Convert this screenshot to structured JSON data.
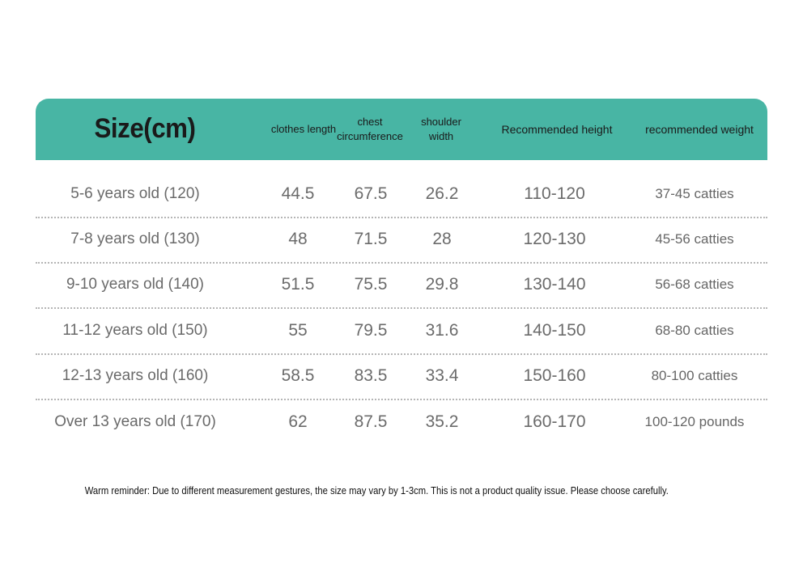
{
  "table": {
    "header": {
      "size": "Size(cm)",
      "length": "clothes length",
      "chest_line1": "chest",
      "chest_line2": "circumference",
      "shoulder_line1": "shoulder",
      "shoulder_line2": "width",
      "height": "Recommended height",
      "weight": "recommended weight"
    },
    "rows": [
      {
        "size": "5-6 years old (120)",
        "length": "44.5",
        "chest": "67.5",
        "shoulder": "26.2",
        "height": "110-120",
        "weight": "37-45 catties"
      },
      {
        "size": "7-8 years old (130)",
        "length": "48",
        "chest": "71.5",
        "shoulder": "28",
        "height": "120-130",
        "weight": "45-56 catties"
      },
      {
        "size": "9-10 years old (140)",
        "length": "51.5",
        "chest": "75.5",
        "shoulder": "29.8",
        "height": "130-140",
        "weight": "56-68 catties"
      },
      {
        "size": "11-12 years old (150)",
        "length": "55",
        "chest": "79.5",
        "shoulder": "31.6",
        "height": "140-150",
        "weight": "68-80 catties"
      },
      {
        "size": "12-13 years old (160)",
        "length": "58.5",
        "chest": "83.5",
        "shoulder": "33.4",
        "height": "150-160",
        "weight": "80-100 catties"
      },
      {
        "size": "Over 13 years old (170)",
        "length": "62",
        "chest": "87.5",
        "shoulder": "35.2",
        "height": "160-170",
        "weight": "100-120 pounds"
      }
    ]
  },
  "footer": {
    "note": "Warm reminder: Due to different measurement gestures, the size may vary by 1-3cm. This is not a product quality issue. Please choose carefully."
  },
  "colors": {
    "header_bg": "#48b5a4",
    "text_dark": "#1a1a1a",
    "text_gray": "#666666"
  }
}
